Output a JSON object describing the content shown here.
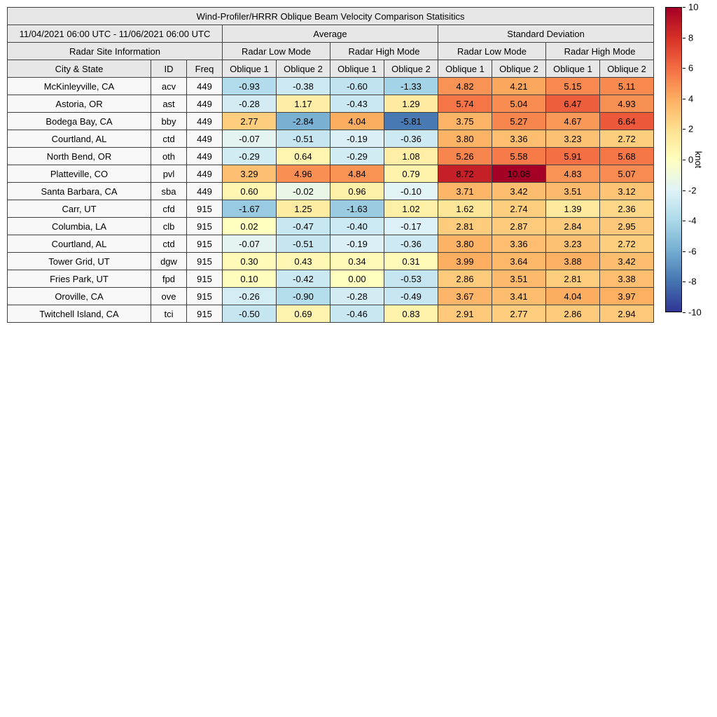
{
  "table": {
    "title": "Wind-Profiler/HRRR Oblique Beam Velocity Comparison Statisitics",
    "date_range": "11/04/2021 06:00 UTC - 11/06/2021 06:00 UTC",
    "site_info_label": "Radar Site Information",
    "groups": [
      "Average",
      "Standard Deviation"
    ],
    "modes": [
      "Radar Low Mode",
      "Radar High Mode",
      "Radar Low Mode",
      "Radar High Mode"
    ],
    "site_columns": [
      "City & State",
      "ID",
      "Freq"
    ],
    "oblique_labels": [
      "Oblique 1",
      "Oblique 2",
      "Oblique 1",
      "Oblique 2",
      "Oblique 1",
      "Oblique 2",
      "Oblique 1",
      "Oblique 2"
    ]
  },
  "colorbar": {
    "label": "knot",
    "min": -10,
    "max": 10,
    "ticks": [
      10,
      8,
      6,
      4,
      2,
      0,
      -2,
      -4,
      -6,
      -8,
      -10
    ],
    "colors": [
      "#313695",
      "#4575b1",
      "#74add1",
      "#abd9e9",
      "#e0f3f8",
      "#ffffbf",
      "#fee090",
      "#fdae61",
      "#f46d43",
      "#d73027",
      "#a50026"
    ]
  },
  "chart_data": {
    "type": "heatmap",
    "title": "Wind-Profiler/HRRR Oblique Beam Velocity Comparison Statisitics",
    "unit": "knot",
    "color_range": [
      -10,
      10
    ],
    "column_groups": [
      "Average Radar Low Mode Oblique 1",
      "Average Radar Low Mode Oblique 2",
      "Average Radar High Mode Oblique 1",
      "Average Radar High Mode Oblique 2",
      "Standard Deviation Radar Low Mode Oblique 1",
      "Standard Deviation Radar Low Mode Oblique 2",
      "Standard Deviation Radar High Mode Oblique 1",
      "Standard Deviation Radar High Mode Oblique 2"
    ],
    "rows": [
      {
        "city": "McKinleyville, CA",
        "id": "acv",
        "freq": 449,
        "values": [
          -0.93,
          -0.38,
          -0.6,
          -1.33,
          4.82,
          4.21,
          5.15,
          5.11
        ]
      },
      {
        "city": "Astoria, OR",
        "id": "ast",
        "freq": 449,
        "values": [
          -0.28,
          1.17,
          -0.43,
          1.29,
          5.74,
          5.04,
          6.47,
          4.93
        ]
      },
      {
        "city": "Bodega Bay, CA",
        "id": "bby",
        "freq": 449,
        "values": [
          2.77,
          -2.84,
          4.04,
          -5.81,
          3.75,
          5.27,
          4.67,
          6.64
        ]
      },
      {
        "city": "Courtland, AL",
        "id": "ctd",
        "freq": 449,
        "values": [
          -0.07,
          -0.51,
          -0.19,
          -0.36,
          3.8,
          3.36,
          3.23,
          2.72
        ]
      },
      {
        "city": "North Bend, OR",
        "id": "oth",
        "freq": 449,
        "values": [
          -0.29,
          0.64,
          -0.29,
          1.08,
          5.26,
          5.58,
          5.91,
          5.68
        ]
      },
      {
        "city": "Platteville, CO",
        "id": "pvl",
        "freq": 449,
        "values": [
          3.29,
          4.96,
          4.84,
          0.79,
          8.72,
          10.08,
          4.83,
          5.07
        ]
      },
      {
        "city": "Santa Barbara, CA",
        "id": "sba",
        "freq": 449,
        "values": [
          0.6,
          -0.02,
          0.96,
          -0.1,
          3.71,
          3.42,
          3.51,
          3.12
        ]
      },
      {
        "city": "Carr, UT",
        "id": "cfd",
        "freq": 915,
        "values": [
          -1.67,
          1.25,
          -1.63,
          1.02,
          1.62,
          2.74,
          1.39,
          2.36
        ]
      },
      {
        "city": "Columbia, LA",
        "id": "clb",
        "freq": 915,
        "values": [
          0.02,
          -0.47,
          -0.4,
          -0.17,
          2.81,
          2.87,
          2.84,
          2.95
        ]
      },
      {
        "city": "Courtland, AL",
        "id": "ctd",
        "freq": 915,
        "values": [
          -0.07,
          -0.51,
          -0.19,
          -0.36,
          3.8,
          3.36,
          3.23,
          2.72
        ]
      },
      {
        "city": "Tower Grid, UT",
        "id": "dgw",
        "freq": 915,
        "values": [
          0.3,
          0.43,
          0.34,
          0.31,
          3.99,
          3.64,
          3.88,
          3.42
        ]
      },
      {
        "city": "Fries Park, UT",
        "id": "fpd",
        "freq": 915,
        "values": [
          0.1,
          -0.42,
          0.0,
          -0.53,
          2.86,
          3.51,
          2.81,
          3.38
        ]
      },
      {
        "city": "Oroville, CA",
        "id": "ove",
        "freq": 915,
        "values": [
          -0.26,
          -0.9,
          -0.28,
          -0.49,
          3.67,
          3.41,
          4.04,
          3.97
        ]
      },
      {
        "city": "Twitchell Island, CA",
        "id": "tci",
        "freq": 915,
        "values": [
          -0.5,
          0.69,
          -0.46,
          0.83,
          2.91,
          2.77,
          2.86,
          2.94
        ]
      }
    ]
  }
}
